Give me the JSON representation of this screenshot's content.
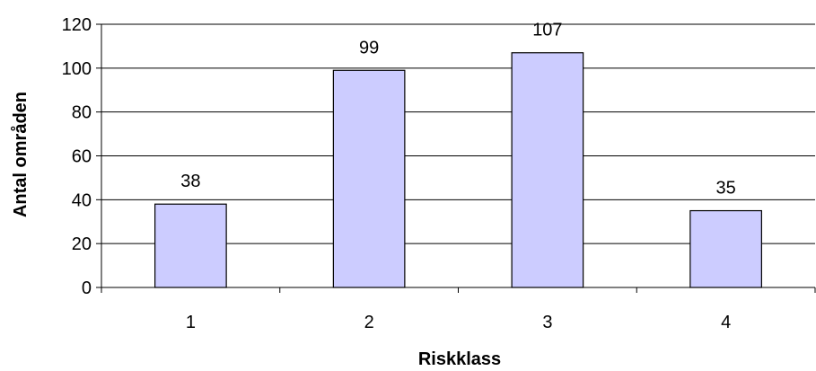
{
  "chart_data": {
    "type": "bar",
    "categories": [
      "1",
      "2",
      "3",
      "4"
    ],
    "values": [
      38,
      99,
      107,
      35
    ],
    "data_labels": [
      "38",
      "99",
      "107",
      "35"
    ],
    "xlabel": "Riskklass",
    "ylabel": "Antal områden",
    "ylim": [
      0,
      120
    ],
    "yticks": [
      "0",
      "20",
      "40",
      "60",
      "80",
      "100",
      "120"
    ],
    "grid": true,
    "legend": "none",
    "colors": {
      "bar_fill": "#CCCCFF",
      "bar_stroke": "#000000",
      "grid": "#000000"
    }
  }
}
